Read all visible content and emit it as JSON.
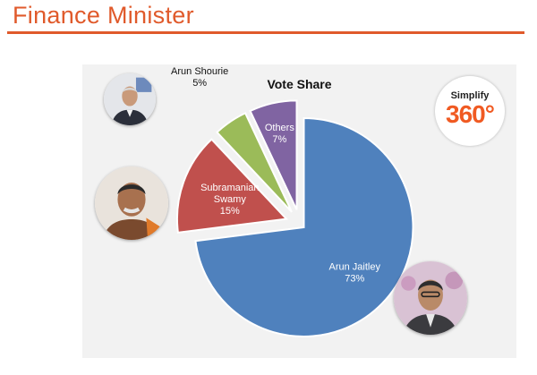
{
  "page": {
    "title": "Finance Minister"
  },
  "logo": {
    "top": "Simplify",
    "main": "360°",
    "accent_color": "#f05a22"
  },
  "photos": [
    "photo-arun-shourie",
    "photo-subramanian-swamy",
    "photo-arun-jaitley"
  ],
  "chart_data": {
    "type": "pie",
    "title": "Vote Share",
    "slices": [
      {
        "label_lines": [
          "Arun Jaitley",
          "73%"
        ],
        "name": "Arun Jaitley",
        "value": 73,
        "color": "#4f81bd"
      },
      {
        "label_lines": [
          "Subramanian",
          "Swamy",
          "15%"
        ],
        "name": "Subramanian Swamy",
        "value": 15,
        "color": "#c0504d"
      },
      {
        "label_lines": [
          "Arun Shourie",
          "5%"
        ],
        "name": "Arun Shourie",
        "value": 5,
        "color": "#9bbb59"
      },
      {
        "label_lines": [
          "Others",
          "7%"
        ],
        "name": "Others",
        "value": 7,
        "color": "#8064a2"
      }
    ],
    "start": "12 o'clock",
    "direction": "clockwise",
    "exploded": true,
    "legend": "none"
  }
}
